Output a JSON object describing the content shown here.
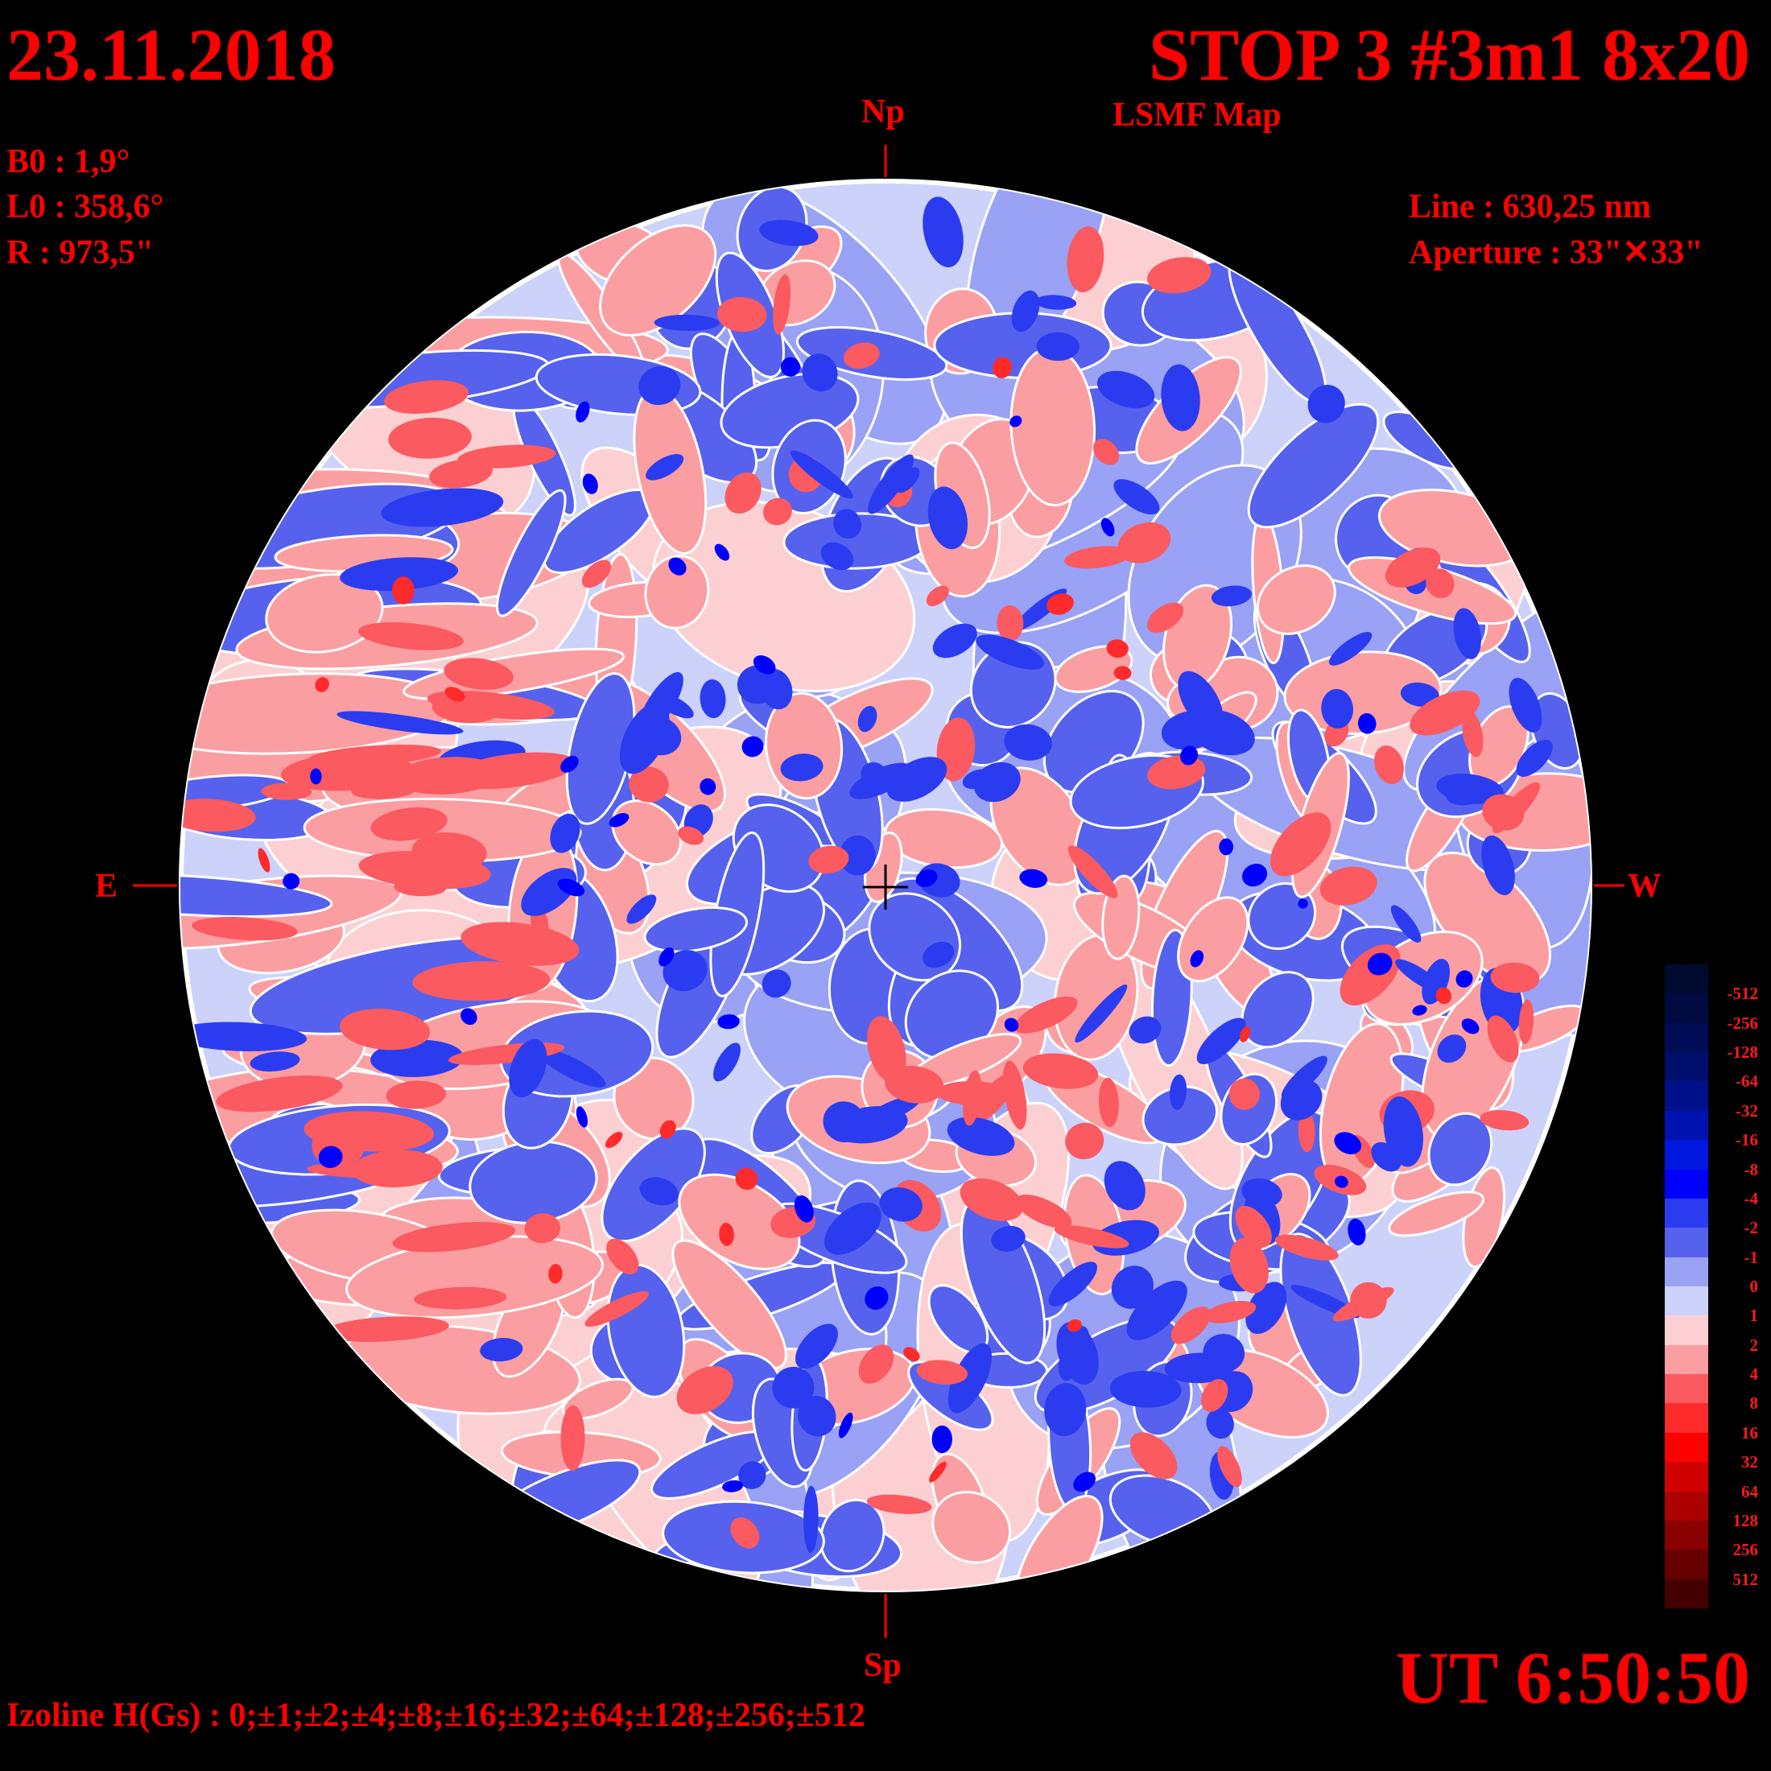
{
  "header": {
    "date": "23.11.2018",
    "title": "STOP 3 #3m1 8x20",
    "subtitle": "LSMF  Map"
  },
  "params": {
    "b0": "B0 : 1,9°",
    "l0": "L0 : 358,6°",
    "r": "R  : 973,5\"",
    "line": "Line :  630,25 nm",
    "aperture": "Aperture : 33\"✕33\""
  },
  "orientation": {
    "north": "Np",
    "south": "Sp",
    "east": "E",
    "west": "W"
  },
  "footer": {
    "time": "UT 6:50:50",
    "izoline": "Izoline H(Gs) : 0;±1;±2;±4;±8;±16;±32;±64;±128;±256;±512"
  },
  "colorbar": {
    "labels": [
      "-512",
      "-256",
      "-128",
      "-64",
      "-32",
      "-16",
      "-8",
      "-4",
      "-2",
      "-1",
      "0",
      "1",
      "2",
      "4",
      "8",
      "16",
      "32",
      "64",
      "128",
      "256",
      "512"
    ],
    "colors": [
      "#000a2e",
      "#000a40",
      "#000c55",
      "#000e6e",
      "#00108a",
      "#0012b0",
      "#0018e0",
      "#0000ff",
      "#2b3cf0",
      "#5662ee",
      "#9aa2f6",
      "#cdd2fb",
      "#fcd0d2",
      "#fb9ea2",
      "#fa5a60",
      "#ff2a2a",
      "#ff0000",
      "#d00000",
      "#ad0000",
      "#880000",
      "#660000",
      "#440000"
    ]
  },
  "map": {
    "positive_color": "#ff2a2a",
    "negative_color": "#2b3cf0",
    "isoline_color": "#ffffff"
  }
}
